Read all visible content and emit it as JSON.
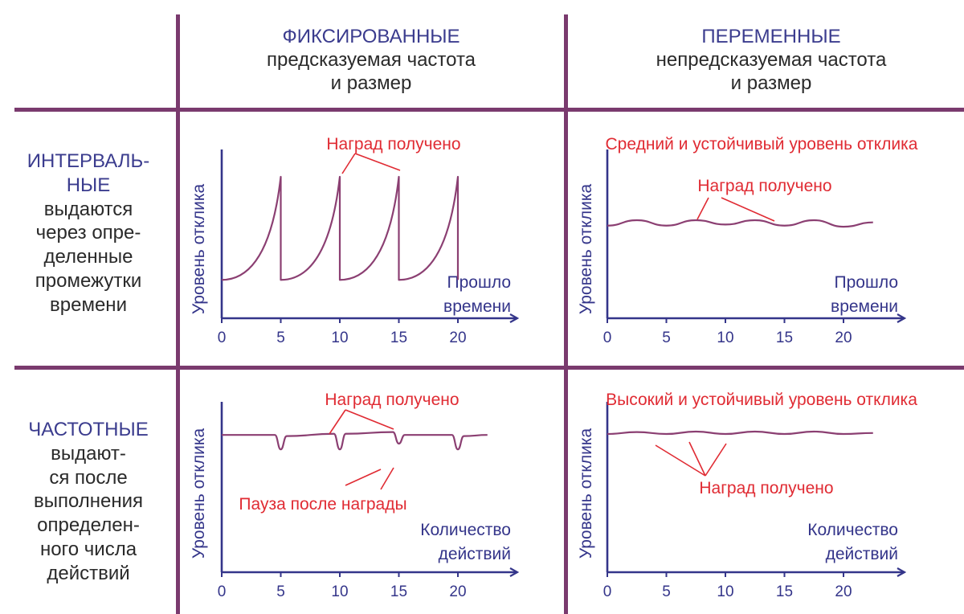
{
  "columns": [
    {
      "title": "ФИКСИРОВАННЫЕ",
      "subtitle_1": "предсказуемая частота",
      "subtitle_2": "и размер"
    },
    {
      "title": "ПЕРЕМЕННЫЕ",
      "subtitle_1": "непредсказуемая частота",
      "subtitle_2": "и размер"
    }
  ],
  "rows": [
    {
      "title_1": "ИНТЕРВАЛЬ-",
      "title_2": "НЫЕ",
      "desc": "выдаются\nчерез опре-\nделенные\nпромежутки\nвремени"
    },
    {
      "title_1": "ЧАСТОТНЫЕ",
      "title_2": "",
      "desc": "выдают-\nся после\nвыполнения\nопределен-\nного числа\nдействий"
    }
  ],
  "colors": {
    "divider": "#7a3a6e",
    "axis": "#34358a",
    "curve": "#8b3f72",
    "annotation": "#e02b33",
    "header": "#3b3c8e"
  },
  "chart_data": [
    {
      "type": "line",
      "panel": "fixed-interval",
      "ylabel": "Уровень отклика",
      "xlabel_1": "Прошло",
      "xlabel_2": "времени",
      "xticks": [
        "0",
        "5",
        "10",
        "15",
        "20"
      ],
      "annotations": [
        "Наград получено"
      ],
      "series": [
        {
          "x": [
            0,
            5,
            5,
            10,
            10,
            15,
            15,
            20,
            20
          ],
          "y": [
            0.05,
            1.0,
            0.05,
            1.0,
            0.05,
            1.0,
            0.05,
            1.0,
            0.05
          ]
        }
      ]
    },
    {
      "type": "line",
      "panel": "variable-interval",
      "ylabel": "Уровень отклика",
      "xlabel_1": "Прошло",
      "xlabel_2": "времени",
      "xticks": [
        "0",
        "5",
        "10",
        "15",
        "20"
      ],
      "annotations": [
        "Средний и устойчивый уровень отклика",
        "Наград получено"
      ],
      "series": [
        {
          "x": [
            0,
            2.5,
            5,
            7.5,
            10,
            12.5,
            15,
            17.5,
            20,
            22.5
          ],
          "y": [
            0.55,
            0.6,
            0.55,
            0.6,
            0.56,
            0.6,
            0.55,
            0.6,
            0.54,
            0.58
          ]
        }
      ]
    },
    {
      "type": "line",
      "panel": "fixed-ratio",
      "ylabel": "Уровень отклика",
      "xlabel_1": "Количество",
      "xlabel_2": "действий",
      "xticks": [
        "0",
        "5",
        "10",
        "15",
        "20"
      ],
      "annotations": [
        "Наград получено",
        "Пауза после награды"
      ],
      "series": [
        {
          "x": [
            0,
            4.5,
            5,
            5.5,
            9.5,
            10,
            10.5,
            14.5,
            15,
            15.5,
            19.5,
            20,
            20.5,
            22.5
          ],
          "y": [
            0.9,
            0.9,
            0.65,
            0.88,
            0.92,
            0.65,
            0.92,
            0.95,
            0.75,
            0.9,
            0.9,
            0.65,
            0.88,
            0.9
          ]
        }
      ]
    },
    {
      "type": "line",
      "panel": "variable-ratio",
      "ylabel": "Уровень отклика",
      "xlabel_1": "Количество",
      "xlabel_2": "действий",
      "xticks": [
        "0",
        "5",
        "10",
        "15",
        "20"
      ],
      "annotations": [
        "Высокий и устойчивый уровень отклика",
        "Наград получено"
      ],
      "series": [
        {
          "x": [
            0,
            2.5,
            5,
            7.5,
            10,
            12.5,
            15,
            17.5,
            20,
            22.5
          ],
          "y": [
            0.9,
            0.94,
            0.9,
            0.95,
            0.9,
            0.95,
            0.9,
            0.95,
            0.9,
            0.92
          ]
        }
      ]
    }
  ]
}
